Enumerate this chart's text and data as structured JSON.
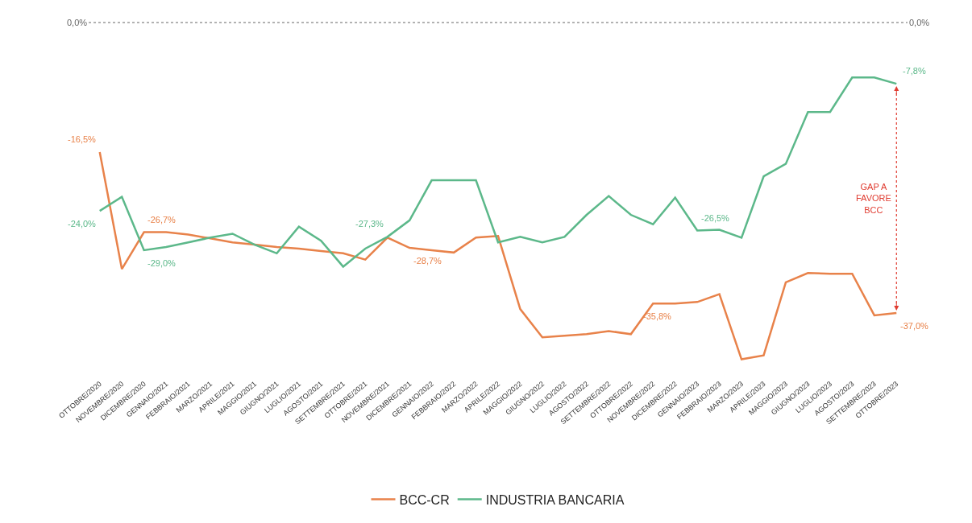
{
  "chart_data": {
    "type": "line",
    "categories": [
      "OTTOBRE/2020",
      "NOVEMBRE/2020",
      "DICEMBRE/2020",
      "GENNAIO/2021",
      "FEBBRAIO/2021",
      "MARZO/2021",
      "APRILE/2021",
      "MAGGIO/2021",
      "GIUGNO/2021",
      "LUGLIO/2021",
      "AGOSTO/2021",
      "SETTEMBRE/2021",
      "OTTOBRE/2021",
      "NOVEMBRE/2021",
      "DICEMBRE/2021",
      "GENNAIO/2022",
      "FEBBRAIO/2022",
      "MARZO/2022",
      "APRILE/2022",
      "MAGGIO/2022",
      "GIUGNO/2022",
      "LUGLIO/2022",
      "AGOSTO/2022",
      "SETTEMBRE/2022",
      "OTTOBRE/2022",
      "NOVEMBRE/2022",
      "DICEMBRE/2022",
      "GENNAIO/2023",
      "FEBBRAIO/2023",
      "MARZO/2023",
      "APRILE/2023",
      "MAGGIO/2023",
      "GIUGNO/2023",
      "LUGLIO/2023",
      "AGOSTO/2023",
      "SETTEMBRE/2023",
      "OTTOBRE/2023"
    ],
    "series": [
      {
        "name": "BCC-CR",
        "color": "#e8824a",
        "values": [
          -16.5,
          -31.4,
          -26.7,
          -26.7,
          -27.0,
          -27.5,
          -28.0,
          -28.3,
          -28.6,
          -28.8,
          -29.1,
          -29.4,
          -30.2,
          -27.4,
          -28.7,
          -29.0,
          -29.3,
          -27.4,
          -27.2,
          -36.5,
          -40.1,
          -39.9,
          -39.7,
          -39.3,
          -39.7,
          -35.8,
          -35.8,
          -35.6,
          -34.6,
          -42.9,
          -42.4,
          -33.1,
          -31.9,
          -32.0,
          -32.0,
          -37.3,
          -37.0
        ],
        "value_labels": [
          "-16,5%",
          null,
          "-26,7%",
          null,
          null,
          null,
          null,
          null,
          null,
          null,
          null,
          null,
          null,
          null,
          "-28,7%",
          null,
          null,
          null,
          null,
          null,
          null,
          null,
          null,
          null,
          null,
          null,
          "-35,8%",
          null,
          null,
          null,
          null,
          null,
          null,
          null,
          null,
          null,
          "-37,0%"
        ]
      },
      {
        "name": "INDUSTRIA BANCARIA",
        "color": "#5cb88a",
        "values": [
          -24.0,
          -22.2,
          -29.0,
          -28.6,
          -28.0,
          -27.4,
          -26.9,
          -28.3,
          -29.4,
          -26.0,
          -27.8,
          -31.1,
          -28.8,
          -27.3,
          -25.2,
          -20.1,
          -20.1,
          -20.1,
          -28.0,
          -27.3,
          -28.0,
          -27.3,
          -24.5,
          -22.1,
          -24.5,
          -25.7,
          -22.3,
          -26.5,
          -26.4,
          -27.4,
          -19.6,
          -18.0,
          -11.4,
          -11.4,
          -7.0,
          -7.0,
          -7.8
        ],
        "value_labels": [
          "-24,0%",
          null,
          "-29,0%",
          null,
          null,
          null,
          null,
          null,
          null,
          null,
          null,
          null,
          null,
          "-27,3%",
          null,
          null,
          null,
          null,
          null,
          null,
          null,
          null,
          null,
          null,
          null,
          null,
          null,
          "-26,5%",
          null,
          null,
          null,
          null,
          null,
          null,
          null,
          null,
          "-7,8%"
        ]
      }
    ],
    "ref_lines": [
      {
        "axis": "y",
        "value": 0,
        "label": "0,0%",
        "color": "#999999",
        "line_style": "dotted"
      }
    ],
    "annotations": [
      "GAP A\nFAVORE\nBCC"
    ],
    "legend": "bottom",
    "marker": "none",
    "line_style": "solid"
  }
}
